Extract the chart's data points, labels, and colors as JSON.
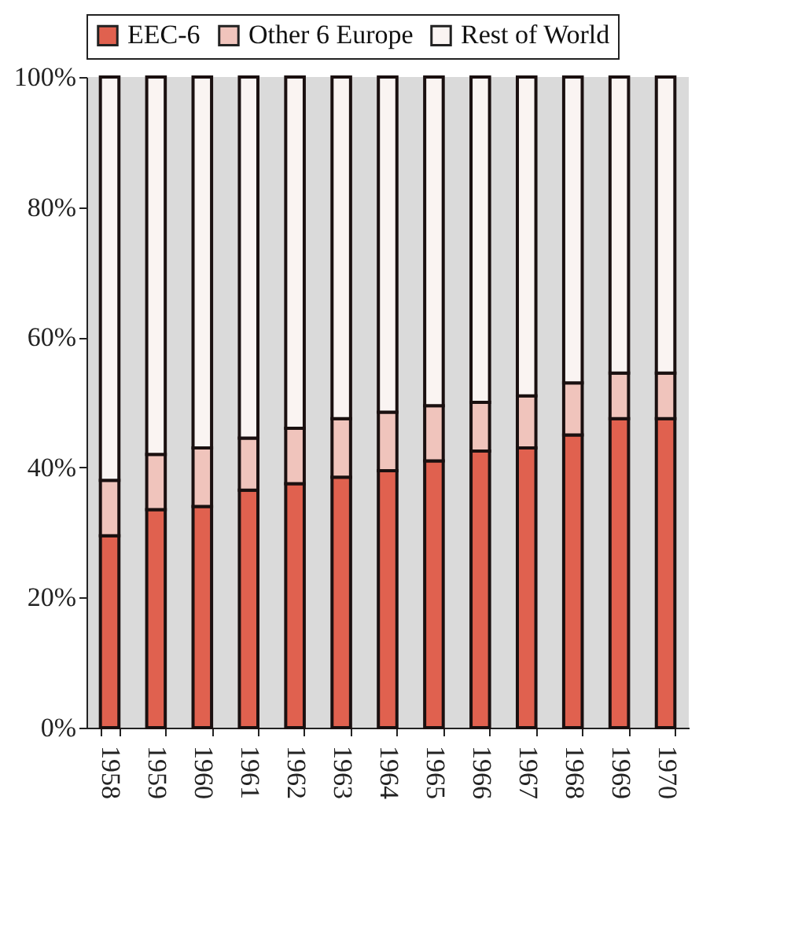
{
  "chart_data": {
    "type": "bar",
    "stacked": true,
    "legend": "top",
    "categories": [
      "1958",
      "1959",
      "1960",
      "1961",
      "1962",
      "1963",
      "1964",
      "1965",
      "1966",
      "1967",
      "1968",
      "1969",
      "1970"
    ],
    "series": [
      {
        "name": "EEC-6",
        "color": "#e0614f",
        "values": [
          29.5,
          33.5,
          34,
          36.5,
          37.5,
          38.5,
          39.5,
          41,
          42.5,
          43,
          45,
          47.5,
          47.5
        ]
      },
      {
        "name": "Other 6 Europe",
        "color": "#f0c4bc",
        "values": [
          8.5,
          8.5,
          9,
          8,
          8.5,
          9,
          9,
          8.5,
          7.5,
          8,
          8,
          7,
          7
        ]
      },
      {
        "name": "Rest of World",
        "color": "#faf4f2",
        "values": [
          62,
          58,
          57,
          55.5,
          54,
          52.5,
          51.5,
          50.5,
          50,
          49,
          47,
          45.5,
          45.5
        ]
      }
    ],
    "ylim": [
      0,
      100
    ],
    "yticks": [
      {
        "value": 0,
        "label": "0%"
      },
      {
        "value": 20,
        "label": "20%"
      },
      {
        "value": 40,
        "label": "40%"
      },
      {
        "value": 60,
        "label": "60%"
      },
      {
        "value": 80,
        "label": "80%"
      },
      {
        "value": 100,
        "label": "100%"
      }
    ]
  }
}
